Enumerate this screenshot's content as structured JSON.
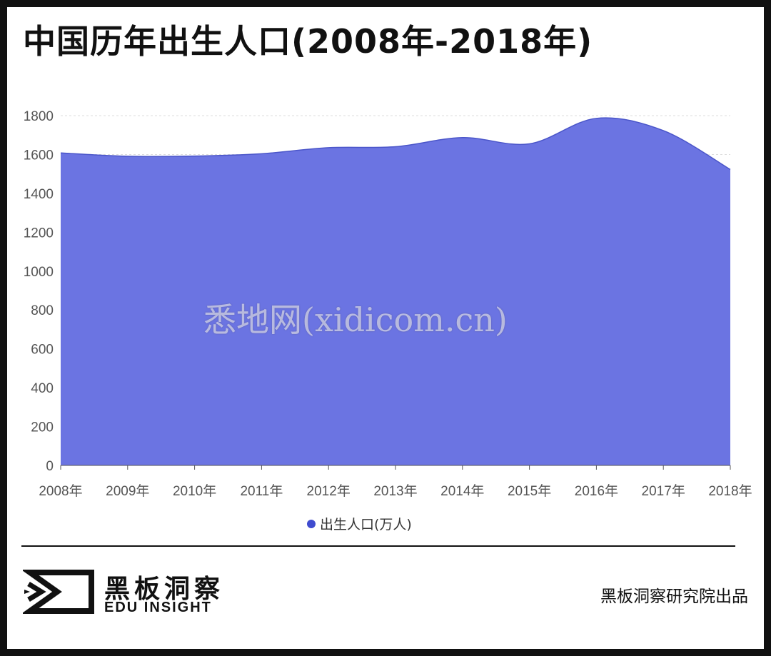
{
  "title": "中国历年出生人口(2008年-2018年)",
  "chart_data": {
    "type": "area",
    "categories": [
      "2008年",
      "2009年",
      "2010年",
      "2011年",
      "2012年",
      "2013年",
      "2014年",
      "2015年",
      "2016年",
      "2017年",
      "2018年"
    ],
    "series": [
      {
        "name": "出生人口(万人)",
        "values": [
          1608,
          1591,
          1592,
          1604,
          1635,
          1640,
          1687,
          1655,
          1786,
          1723,
          1523
        ],
        "color": "#6b74e2"
      }
    ],
    "ylim": [
      0,
      1800
    ],
    "yticks": [
      0,
      200,
      400,
      600,
      800,
      1000,
      1200,
      1400,
      1600,
      1800
    ],
    "grid": true,
    "legend_position": "bottom-center"
  },
  "legend": {
    "label": "出生人口(万人)",
    "color": "#3f4ccf"
  },
  "watermark": "悉地网(xidicom.cn)",
  "brand": {
    "name_cn": "黑板洞察",
    "name_en": "EDU INSIGHT"
  },
  "credit": "黑板洞察研究院出品"
}
